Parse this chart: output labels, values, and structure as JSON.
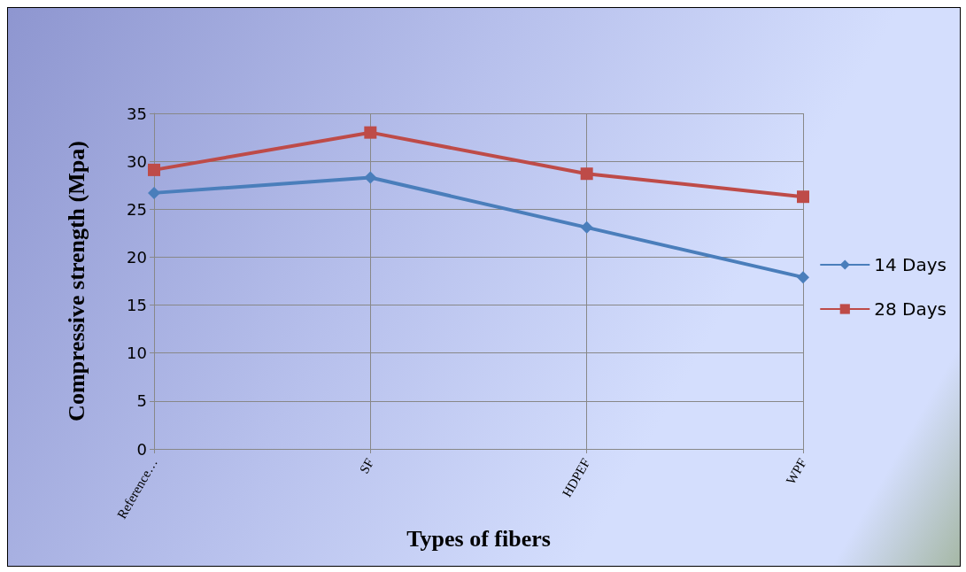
{
  "chart_data": {
    "type": "line",
    "xlabel": "Types of fibers",
    "ylabel": "Compressive strength (Mpa)",
    "categories": [
      "Reference…",
      "SF",
      "HDPEF",
      "WPF"
    ],
    "series": [
      {
        "name": "14 Days",
        "color": "#4a7ebb",
        "values": [
          26.7,
          28.3,
          23.1,
          17.9
        ],
        "marker": "diamond"
      },
      {
        "name": "28 Days",
        "color": "#be4b48",
        "values": [
          29.1,
          33.0,
          28.7,
          26.3
        ],
        "marker": "square"
      }
    ],
    "ylim": [
      0,
      35
    ],
    "yticks": [
      0,
      5,
      10,
      15,
      20,
      25,
      30,
      35
    ],
    "grid": true,
    "legend": "right",
    "line_style": "solid"
  }
}
